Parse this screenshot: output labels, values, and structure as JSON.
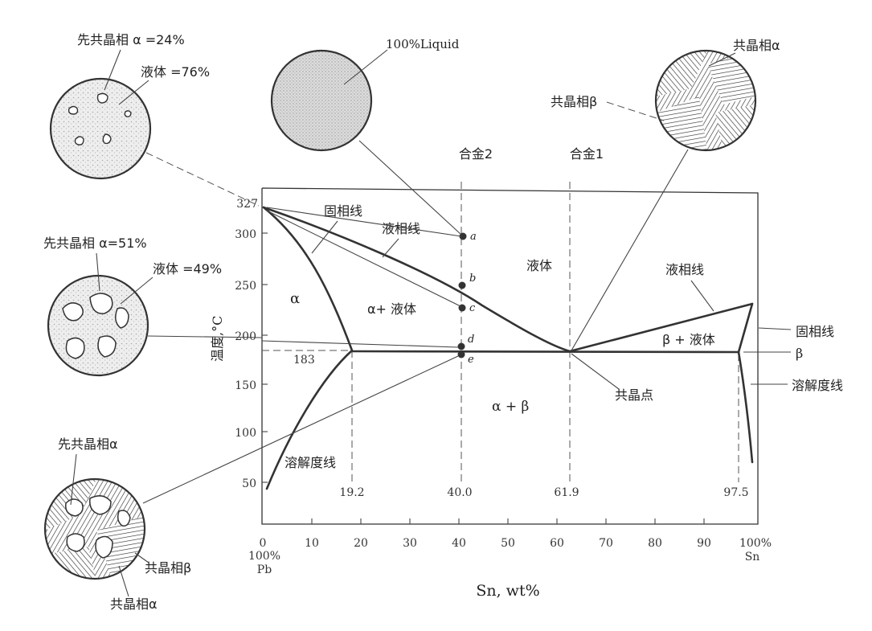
{
  "diagram": {
    "x_axis": {
      "label": "Sn, wt%",
      "ticks": [
        "0",
        "10",
        "20",
        "30",
        "40",
        "50",
        "60",
        "70",
        "80",
        "90",
        "100%"
      ],
      "left_end": [
        "100%",
        "Pb"
      ],
      "right_end": "Sn"
    },
    "y_axis": {
      "label": "温度,°C",
      "ticks": [
        "50",
        "100",
        "150",
        "200",
        "250",
        "300"
      ],
      "top_value": "327"
    },
    "compositions": [
      "19.2",
      "40.0",
      "61.9",
      "97.5"
    ],
    "eutectic_temp": "183",
    "alloys": {
      "alloy1": "合金1",
      "alloy2": "合金2"
    },
    "regions": {
      "alpha": "α",
      "alpha_liquid": "α+ 液体",
      "liquid": "液体",
      "beta_liquid": "β + 液体",
      "alpha_beta": "α  +  β"
    },
    "line_labels": {
      "solidus_left": "固相线",
      "liquidus_left": "液相线",
      "liquidus_right": "液相线",
      "solidus_right": "固相线",
      "beta": "β",
      "solvus_right": "溶解度线",
      "solvus_left": "溶解度线",
      "eutectic_point": "共晶点"
    },
    "points": [
      "a",
      "b",
      "c",
      "d",
      "e"
    ]
  },
  "micrographs": {
    "m1": {
      "pro_alpha": "先共晶相 α =24%",
      "liquid": "液体 =76%"
    },
    "m2": {
      "pro_alpha": "先共晶相 α=51%",
      "liquid": "液体 =49%"
    },
    "m3": {
      "pro_alpha": "先共晶相α",
      "eut_beta": "共晶相β",
      "eut_alpha": "共晶相α"
    },
    "m4": {
      "liquid": "100%Liquid"
    },
    "m5": {
      "eut_alpha": "共晶相α",
      "eut_beta": "共晶相β"
    }
  }
}
